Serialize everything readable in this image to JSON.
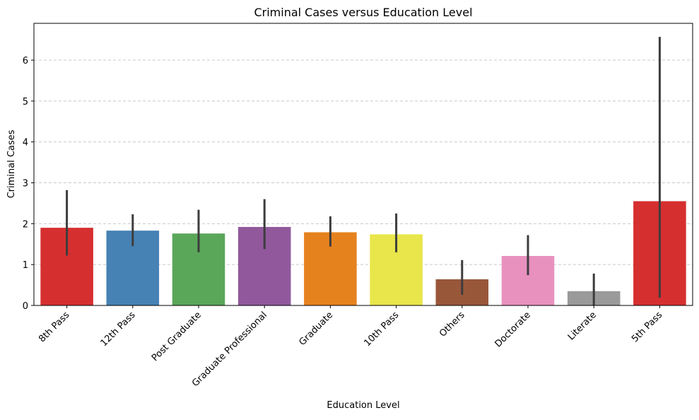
{
  "chart_data": {
    "type": "bar",
    "title": "Criminal Cases versus Education Level",
    "xlabel": "Education Level",
    "ylabel": "Criminal Cases",
    "categories": [
      "8th Pass",
      "12th Pass",
      "Post Graduate",
      "Graduate Professional",
      "Graduate",
      "10th Pass",
      "Others",
      "Doctorate",
      "Literate",
      "5th Pass"
    ],
    "values": [
      1.9,
      1.83,
      1.76,
      1.92,
      1.79,
      1.74,
      0.64,
      1.21,
      0.35,
      2.55
    ],
    "error_low": [
      1.22,
      1.45,
      1.3,
      1.38,
      1.44,
      1.3,
      0.26,
      0.74,
      0.0,
      0.19
    ],
    "error_high": [
      2.82,
      2.23,
      2.34,
      2.6,
      2.18,
      2.25,
      1.11,
      1.72,
      0.78,
      6.57
    ],
    "colors": [
      "#d62f30",
      "#4682b4",
      "#5aa75a",
      "#91599c",
      "#e6821e",
      "#e8e64a",
      "#99573a",
      "#e891bf",
      "#9a9a9a",
      "#d62f30"
    ],
    "ylim": [
      0,
      6.9
    ],
    "yticks": [
      0,
      1,
      2,
      3,
      4,
      5,
      6
    ],
    "grid": "y-dashed",
    "legend": "none"
  }
}
